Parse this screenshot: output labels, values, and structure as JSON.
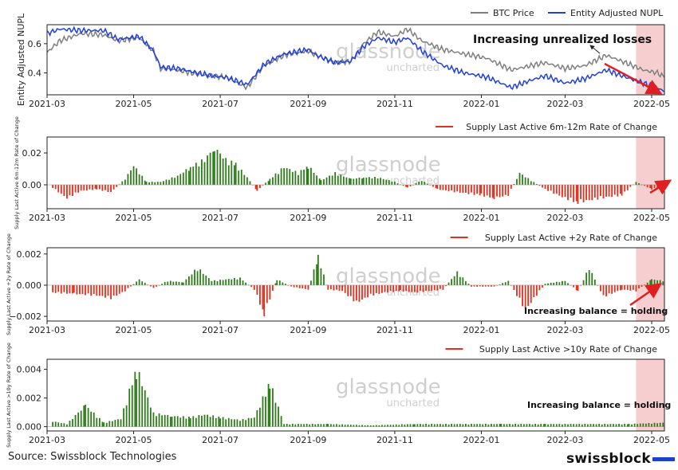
{
  "footer": {
    "source": "Source: Swissblock Technologies",
    "brand": "swissblock"
  },
  "watermark": {
    "name": "glassnode",
    "tag": "uncharted"
  },
  "colors": {
    "btc_price": "#7f7f7f",
    "nupl": "#1f3fe0",
    "positive": "#2e7d1a",
    "negative": "#e0301e",
    "highlight": "#f4c6c8",
    "arrow": "#e02020"
  },
  "x_axis": {
    "ticks": [
      "2021-03",
      "2021-05",
      "2021-07",
      "2021-09",
      "2021-11",
      "2022-01",
      "2022-03",
      "2022-05"
    ],
    "start": "2021-03-01",
    "end": "2022-05-10",
    "highlight_start": "2022-04-20",
    "highlight_end": "2022-05-10"
  },
  "chart_data": [
    {
      "type": "line",
      "ylabel": "Entity Adjusted NUPL",
      "ylim": [
        0.25,
        0.73
      ],
      "yticks": [
        "0.4",
        "0.6"
      ],
      "legend": {
        "placement": "top-right"
      },
      "series": [
        {
          "name": "BTC Price",
          "color": "#7f7f7f",
          "points": [
            [
              "2021-03-01",
              0.54
            ],
            [
              "2021-03-10",
              0.62
            ],
            [
              "2021-03-25",
              0.67
            ],
            [
              "2021-04-10",
              0.66
            ],
            [
              "2021-04-20",
              0.62
            ],
            [
              "2021-05-05",
              0.64
            ],
            [
              "2021-05-15",
              0.55
            ],
            [
              "2021-05-20",
              0.43
            ],
            [
              "2021-06-01",
              0.42
            ],
            [
              "2021-06-15",
              0.39
            ],
            [
              "2021-06-25",
              0.38
            ],
            [
              "2021-07-05",
              0.37
            ],
            [
              "2021-07-20",
              0.3
            ],
            [
              "2021-08-01",
              0.45
            ],
            [
              "2021-08-15",
              0.52
            ],
            [
              "2021-09-01",
              0.55
            ],
            [
              "2021-09-07",
              0.52
            ],
            [
              "2021-09-20",
              0.47
            ],
            [
              "2021-10-01",
              0.48
            ],
            [
              "2021-10-10",
              0.6
            ],
            [
              "2021-10-20",
              0.68
            ],
            [
              "2021-11-01",
              0.65
            ],
            [
              "2021-11-10",
              0.7
            ],
            [
              "2021-11-20",
              0.62
            ],
            [
              "2021-12-05",
              0.56
            ],
            [
              "2021-12-20",
              0.53
            ],
            [
              "2022-01-05",
              0.5
            ],
            [
              "2022-01-22",
              0.42
            ],
            [
              "2022-02-05",
              0.45
            ],
            [
              "2022-02-15",
              0.47
            ],
            [
              "2022-03-01",
              0.43
            ],
            [
              "2022-03-15",
              0.45
            ],
            [
              "2022-03-30",
              0.52
            ],
            [
              "2022-04-10",
              0.48
            ],
            [
              "2022-04-25",
              0.42
            ],
            [
              "2022-05-05",
              0.4
            ],
            [
              "2022-05-10",
              0.37
            ]
          ]
        },
        {
          "name": "Entity Adjusted NUPL",
          "color": "#1f3fe0",
          "points": [
            [
              "2021-03-01",
              0.67
            ],
            [
              "2021-03-10",
              0.7
            ],
            [
              "2021-03-25",
              0.69
            ],
            [
              "2021-04-10",
              0.69
            ],
            [
              "2021-04-20",
              0.63
            ],
            [
              "2021-05-05",
              0.65
            ],
            [
              "2021-05-15",
              0.55
            ],
            [
              "2021-05-20",
              0.44
            ],
            [
              "2021-06-01",
              0.43
            ],
            [
              "2021-06-15",
              0.4
            ],
            [
              "2021-06-25",
              0.38
            ],
            [
              "2021-07-05",
              0.37
            ],
            [
              "2021-07-20",
              0.32
            ],
            [
              "2021-08-01",
              0.46
            ],
            [
              "2021-08-15",
              0.53
            ],
            [
              "2021-09-01",
              0.56
            ],
            [
              "2021-09-07",
              0.52
            ],
            [
              "2021-09-20",
              0.47
            ],
            [
              "2021-10-01",
              0.48
            ],
            [
              "2021-10-10",
              0.58
            ],
            [
              "2021-10-20",
              0.64
            ],
            [
              "2021-11-01",
              0.61
            ],
            [
              "2021-11-10",
              0.64
            ],
            [
              "2021-11-20",
              0.55
            ],
            [
              "2021-12-05",
              0.45
            ],
            [
              "2021-12-20",
              0.4
            ],
            [
              "2022-01-05",
              0.37
            ],
            [
              "2022-01-22",
              0.3
            ],
            [
              "2022-02-05",
              0.35
            ],
            [
              "2022-02-15",
              0.38
            ],
            [
              "2022-03-01",
              0.33
            ],
            [
              "2022-03-15",
              0.36
            ],
            [
              "2022-03-30",
              0.42
            ],
            [
              "2022-04-10",
              0.38
            ],
            [
              "2022-04-25",
              0.33
            ],
            [
              "2022-05-05",
              0.3
            ],
            [
              "2022-05-10",
              0.27
            ]
          ]
        }
      ],
      "annotation": "Increasing unrealized losses"
    },
    {
      "type": "bar",
      "ylabel": "Supply Last Active 6m-12m Rate of Change",
      "legend": {
        "label": "Supply Last Active 6m-12m Rate of Change",
        "placement": "top-right"
      },
      "ylim": [
        -0.015,
        0.03
      ],
      "yticks": [
        "0.00",
        "0.02"
      ],
      "segments": [
        [
          "2021-03-05",
          -0.002
        ],
        [
          "2021-03-15",
          -0.009
        ],
        [
          "2021-03-25",
          -0.004
        ],
        [
          "2021-04-05",
          -0.003
        ],
        [
          "2021-04-15",
          -0.005
        ],
        [
          "2021-04-25",
          0.004
        ],
        [
          "2021-05-01",
          0.013
        ],
        [
          "2021-05-10",
          0.002
        ],
        [
          "2021-05-20",
          0.002
        ],
        [
          "2021-06-01",
          0.006
        ],
        [
          "2021-06-10",
          0.012
        ],
        [
          "2021-06-20",
          0.017
        ],
        [
          "2021-06-27",
          0.025
        ],
        [
          "2021-07-05",
          0.017
        ],
        [
          "2021-07-12",
          0.014
        ],
        [
          "2021-07-20",
          0.005
        ],
        [
          "2021-07-27",
          -0.004
        ],
        [
          "2021-08-05",
          0.004
        ],
        [
          "2021-08-15",
          0.012
        ],
        [
          "2021-08-25",
          0.008
        ],
        [
          "2021-09-01",
          0.013
        ],
        [
          "2021-09-10",
          0.003
        ],
        [
          "2021-09-20",
          0.008
        ],
        [
          "2021-10-01",
          0.004
        ],
        [
          "2021-10-10",
          0.005
        ],
        [
          "2021-10-20",
          0.005
        ],
        [
          "2021-11-01",
          0.002
        ],
        [
          "2021-11-10",
          -0.002
        ],
        [
          "2021-11-20",
          0.003
        ],
        [
          "2021-12-01",
          -0.003
        ],
        [
          "2021-12-15",
          -0.005
        ],
        [
          "2022-01-01",
          -0.007
        ],
        [
          "2022-01-10",
          -0.009
        ],
        [
          "2022-01-20",
          -0.007
        ],
        [
          "2022-01-28",
          0.008
        ],
        [
          "2022-02-05",
          0.003
        ],
        [
          "2022-02-15",
          -0.003
        ],
        [
          "2022-03-01",
          -0.009
        ],
        [
          "2022-03-10",
          -0.012
        ],
        [
          "2022-03-20",
          -0.01
        ],
        [
          "2022-04-01",
          -0.008
        ],
        [
          "2022-04-10",
          -0.007
        ],
        [
          "2022-04-20",
          0.002
        ],
        [
          "2022-05-01",
          -0.003
        ],
        [
          "2022-05-10",
          -0.001
        ]
      ]
    },
    {
      "type": "bar",
      "ylabel": "Supply Last Active +2y Rate of Change",
      "legend": {
        "label": "Supply Last Active +2y Rate of Change",
        "placement": "top-right"
      },
      "ylim": [
        -0.0023,
        0.0024
      ],
      "yticks": [
        "−0.002",
        "0.000",
        "0.002"
      ],
      "segments": [
        [
          "2021-03-05",
          -0.0005
        ],
        [
          "2021-03-20",
          -0.0006
        ],
        [
          "2021-04-05",
          -0.0007
        ],
        [
          "2021-04-15",
          -0.0009
        ],
        [
          "2021-04-25",
          -0.0004
        ],
        [
          "2021-05-05",
          0.0004
        ],
        [
          "2021-05-15",
          -0.0002
        ],
        [
          "2021-05-25",
          0.0003
        ],
        [
          "2021-06-05",
          0.0002
        ],
        [
          "2021-06-15",
          0.0012
        ],
        [
          "2021-06-25",
          0.0003
        ],
        [
          "2021-07-05",
          0.0004
        ],
        [
          "2021-07-15",
          0.0005
        ],
        [
          "2021-07-25",
          -0.0003
        ],
        [
          "2021-08-01",
          -0.002
        ],
        [
          "2021-08-10",
          0.0004
        ],
        [
          "2021-08-20",
          -0.0001
        ],
        [
          "2021-09-01",
          -0.0003
        ],
        [
          "2021-09-08",
          0.002
        ],
        [
          "2021-09-15",
          -0.0003
        ],
        [
          "2021-09-25",
          -0.0004
        ],
        [
          "2021-10-05",
          -0.0012
        ],
        [
          "2021-10-15",
          -0.0007
        ],
        [
          "2021-10-25",
          -0.0005
        ],
        [
          "2021-11-05",
          -0.0004
        ],
        [
          "2021-11-15",
          -0.0005
        ],
        [
          "2021-11-25",
          -0.0004
        ],
        [
          "2021-12-05",
          -0.0003
        ],
        [
          "2021-12-15",
          0.0009
        ],
        [
          "2021-12-25",
          -0.0001
        ],
        [
          "2022-01-10",
          -0.0001
        ],
        [
          "2022-01-20",
          0.0003
        ],
        [
          "2022-02-01",
          -0.0017
        ],
        [
          "2022-02-15",
          0.0001
        ],
        [
          "2022-03-01",
          0.0003
        ],
        [
          "2022-03-10",
          -0.0004
        ],
        [
          "2022-03-18",
          0.0012
        ],
        [
          "2022-03-28",
          -0.0008
        ],
        [
          "2022-04-10",
          -0.0003
        ],
        [
          "2022-04-20",
          -0.0004
        ],
        [
          "2022-05-01",
          0.0004
        ],
        [
          "2022-05-10",
          0.0003
        ]
      ],
      "annotation": "Increasing balance = holding"
    },
    {
      "type": "bar",
      "ylabel": "Supply Last Active >10y Rate of Change",
      "legend": {
        "label": "Supply Last Active >10y Rate of Change",
        "placement": "top-right"
      },
      "ylim": [
        -0.0003,
        0.0047
      ],
      "yticks": [
        "0.000",
        "0.002",
        "0.004"
      ],
      "segments": [
        [
          "2021-03-05",
          0.0004
        ],
        [
          "2021-03-15",
          0.0002
        ],
        [
          "2021-03-28",
          0.0016
        ],
        [
          "2021-04-10",
          0.0003
        ],
        [
          "2021-04-22",
          0.0006
        ],
        [
          "2021-05-03",
          0.0044
        ],
        [
          "2021-05-15",
          0.001
        ],
        [
          "2021-05-28",
          0.0008
        ],
        [
          "2021-06-10",
          0.0007
        ],
        [
          "2021-06-20",
          0.0009
        ],
        [
          "2021-07-01",
          0.0007
        ],
        [
          "2021-07-15",
          0.0005
        ],
        [
          "2021-07-25",
          0.0007
        ],
        [
          "2021-08-05",
          0.0033
        ],
        [
          "2021-08-15",
          0.0002
        ],
        [
          "2021-09-15",
          0.0002
        ],
        [
          "2021-10-15",
          0.0001
        ],
        [
          "2021-11-15",
          0.0002
        ],
        [
          "2021-12-15",
          0.0002
        ],
        [
          "2022-01-15",
          0.0002
        ],
        [
          "2022-02-15",
          0.0002
        ],
        [
          "2022-03-15",
          0.0002
        ],
        [
          "2022-04-15",
          0.0002
        ],
        [
          "2022-05-10",
          0.0003
        ]
      ],
      "annotation": "Increasing balance = holding"
    }
  ]
}
